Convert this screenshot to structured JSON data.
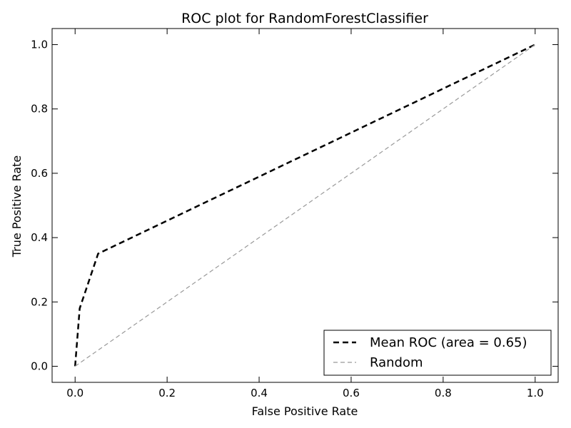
{
  "chart_data": {
    "type": "line",
    "title": "ROC plot for RandomForestClassifier",
    "xlabel": "False Positive Rate",
    "ylabel": "True Positive Rate",
    "xlim": [
      -0.05,
      1.05
    ],
    "ylim": [
      -0.05,
      1.05
    ],
    "xticks": [
      "0.0",
      "0.2",
      "0.4",
      "0.6",
      "0.8",
      "1.0"
    ],
    "yticks": [
      "0.0",
      "0.2",
      "0.4",
      "0.6",
      "0.8",
      "1.0"
    ],
    "grid": false,
    "legend_position": "bottom-right",
    "series": [
      {
        "name": "Mean ROC (area = 0.65)",
        "style": "dashed",
        "color": "#000000",
        "x": [
          0.0,
          0.01,
          0.05,
          1.0
        ],
        "y": [
          0.0,
          0.18,
          0.35,
          1.0
        ]
      },
      {
        "name": "Random",
        "style": "dashed",
        "color": "#999999",
        "x": [
          0.0,
          1.0
        ],
        "y": [
          0.0,
          1.0
        ]
      }
    ]
  }
}
